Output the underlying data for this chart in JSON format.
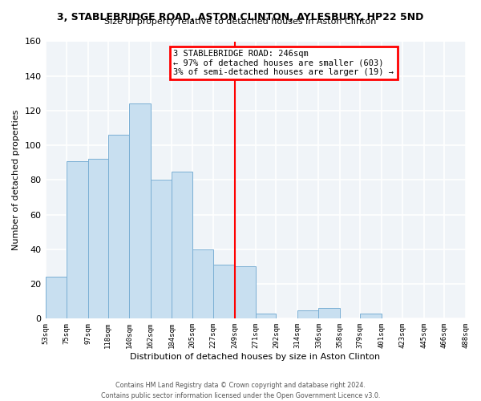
{
  "title": "3, STABLEBRIDGE ROAD, ASTON CLINTON, AYLESBURY, HP22 5ND",
  "subtitle": "Size of property relative to detached houses in Aston Clinton",
  "xlabel": "Distribution of detached houses by size in Aston Clinton",
  "ylabel": "Number of detached properties",
  "bar_color": "#c8dff0",
  "bar_edge_color": "#7aafd4",
  "background_color": "#f0f4f8",
  "grid_color": "#ffffff",
  "bin_edges": [
    53,
    75,
    97,
    118,
    140,
    162,
    184,
    205,
    227,
    249,
    271,
    292,
    314,
    336,
    358,
    379,
    401,
    423,
    445,
    466,
    488
  ],
  "bin_labels": [
    "53sqm",
    "75sqm",
    "97sqm",
    "118sqm",
    "140sqm",
    "162sqm",
    "184sqm",
    "205sqm",
    "227sqm",
    "249sqm",
    "271sqm",
    "292sqm",
    "314sqm",
    "336sqm",
    "358sqm",
    "379sqm",
    "401sqm",
    "423sqm",
    "445sqm",
    "466sqm",
    "488sqm"
  ],
  "bar_heights": [
    24,
    91,
    92,
    106,
    124,
    80,
    85,
    40,
    31,
    30,
    3,
    0,
    5,
    6,
    0,
    3,
    0,
    0,
    0,
    0
  ],
  "property_line_x": 249,
  "annotation_title": "3 STABLEBRIDGE ROAD: 246sqm",
  "annotation_line1": "← 97% of detached houses are smaller (603)",
  "annotation_line2": "3% of semi-detached houses are larger (19) →",
  "ylim": [
    0,
    160
  ],
  "yticks": [
    0,
    20,
    40,
    60,
    80,
    100,
    120,
    140,
    160
  ],
  "footer_line1": "Contains HM Land Registry data © Crown copyright and database right 2024.",
  "footer_line2": "Contains public sector information licensed under the Open Government Licence v3.0."
}
